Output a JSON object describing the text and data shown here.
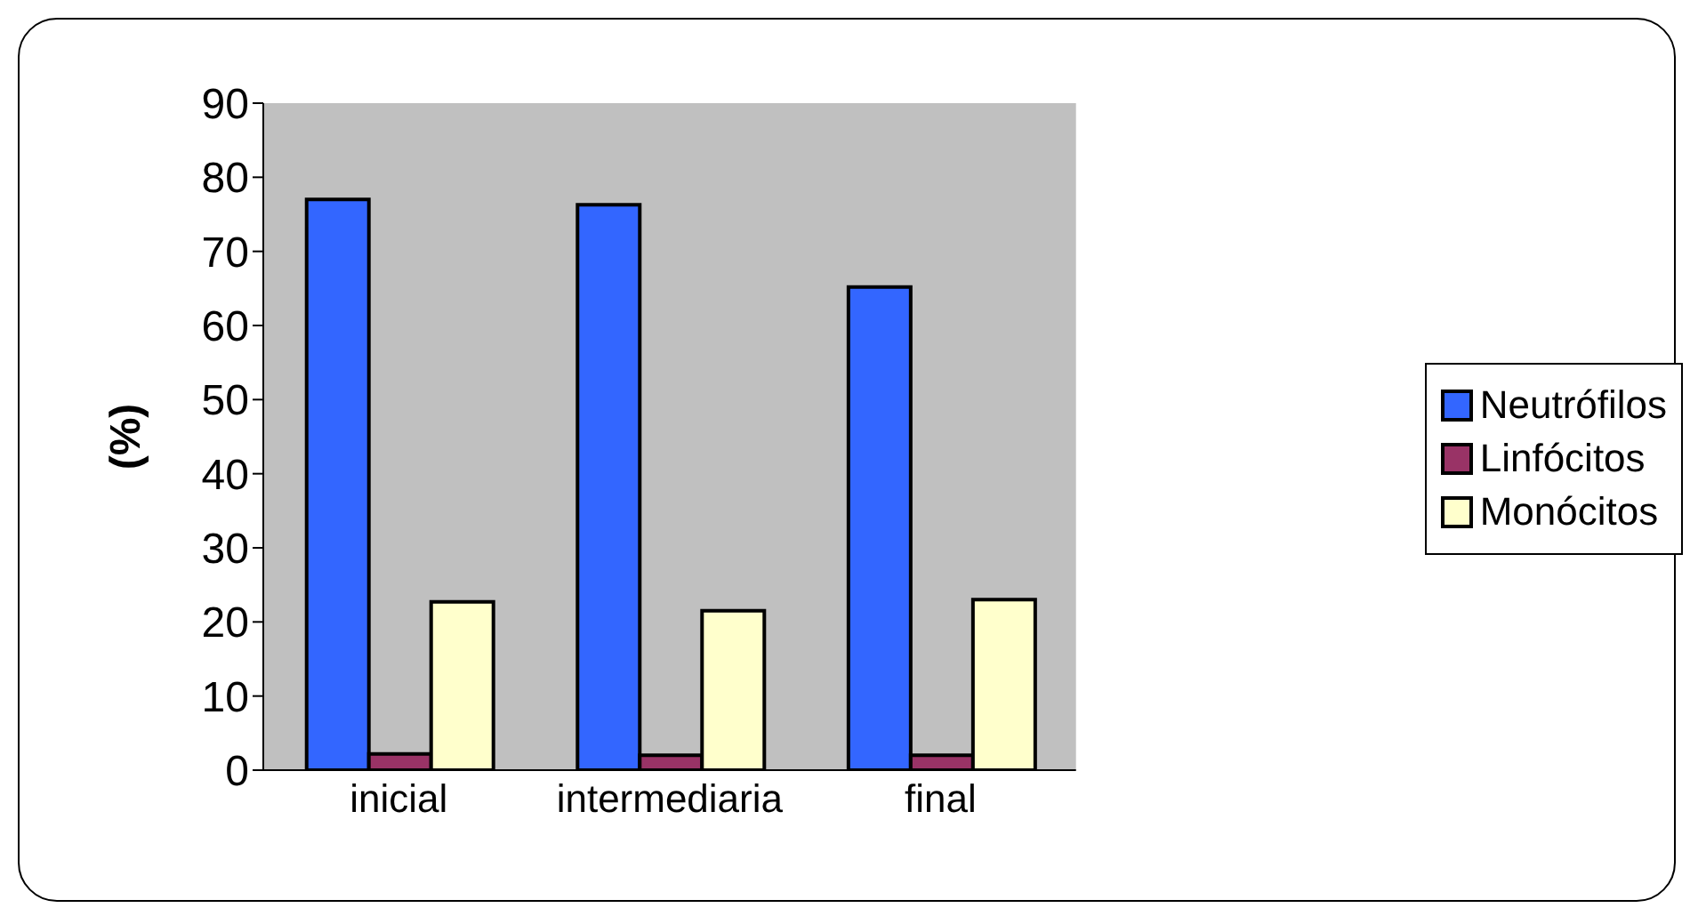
{
  "chart_data": {
    "type": "bar",
    "ylabel": "(%)",
    "categories": [
      "inicial",
      "intermediaria",
      "final"
    ],
    "series": [
      {
        "name": "Neutrófilos",
        "color": "#3366ff",
        "values": [
          77,
          76.3,
          65.2
        ]
      },
      {
        "name": "Linfócitos",
        "color": "#993366",
        "values": [
          2.2,
          2.0,
          2.0
        ]
      },
      {
        "name": "Monócitos",
        "color": "#ffffcc",
        "values": [
          22.7,
          21.5,
          23.0
        ]
      }
    ],
    "ylim": [
      0,
      90
    ],
    "yticks": [
      0,
      10,
      20,
      30,
      40,
      50,
      60,
      70,
      80,
      90
    ],
    "grid": false,
    "legend": "right"
  }
}
